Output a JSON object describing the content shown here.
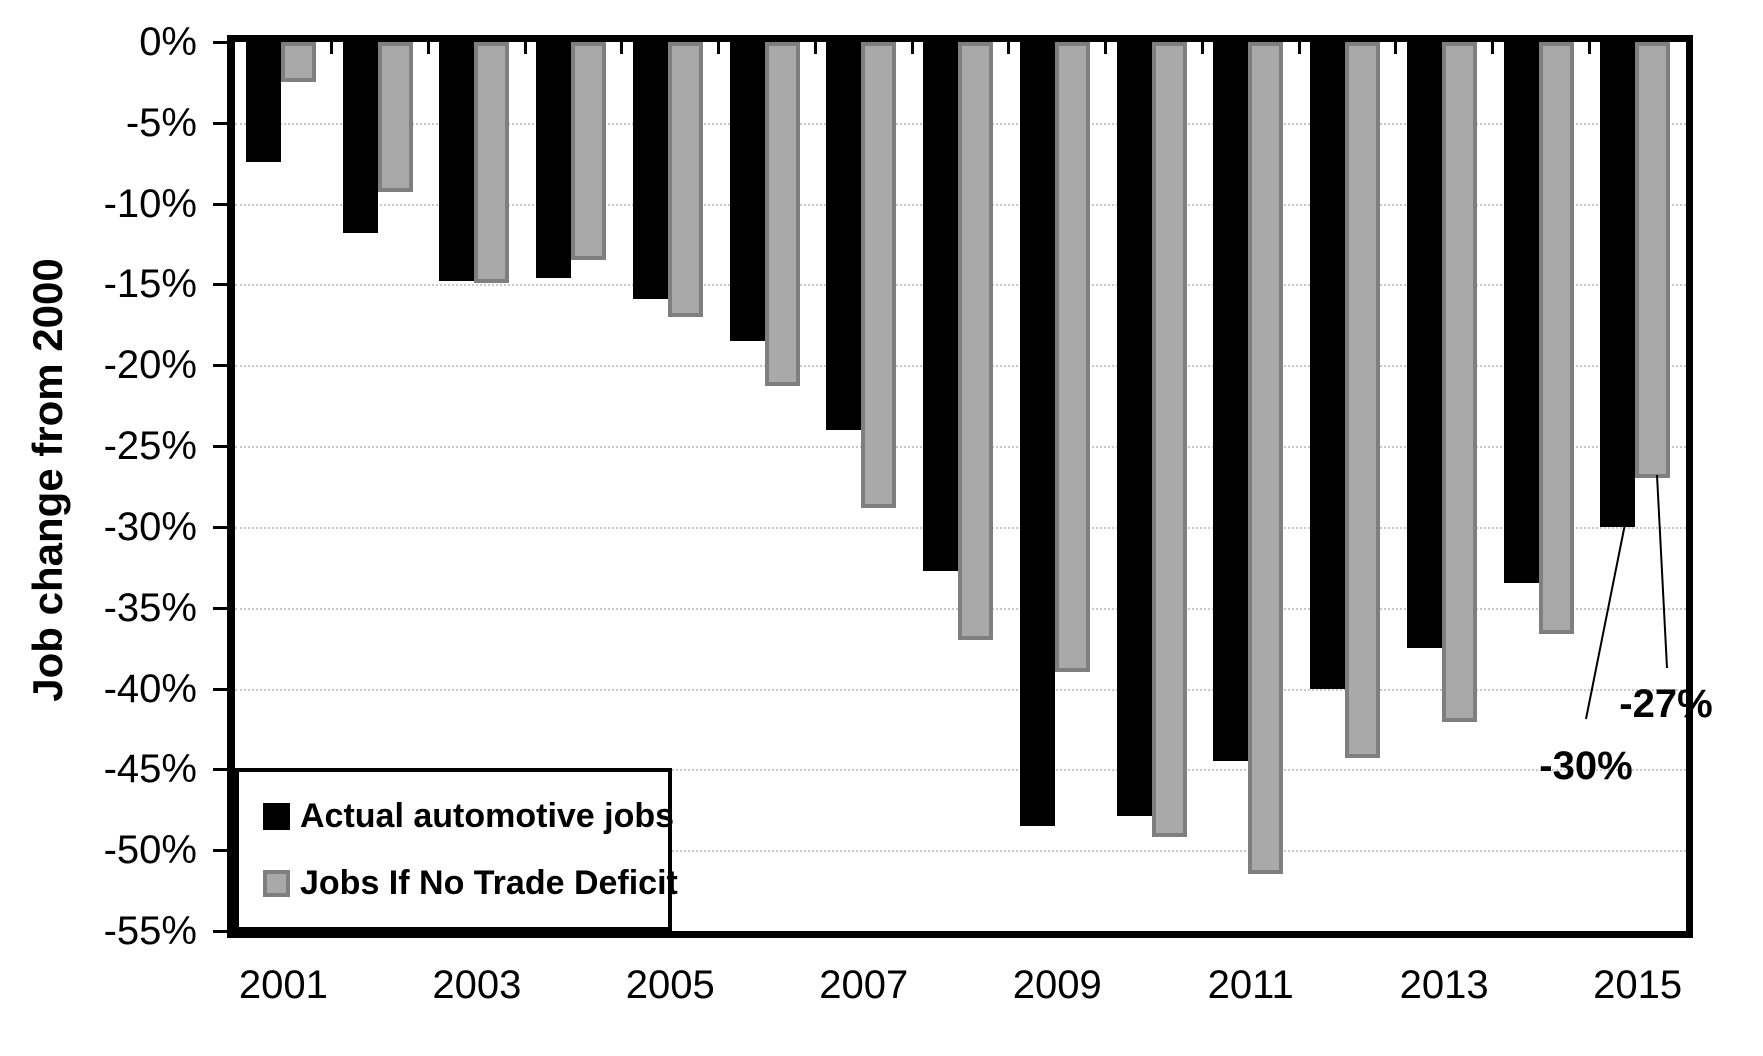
{
  "chart_data": {
    "type": "bar",
    "title": "",
    "y_axis_title": "Job change from 2000",
    "categories": [
      "2001",
      "2002",
      "2003",
      "2004",
      "2005",
      "2006",
      "2007",
      "2008",
      "2009",
      "2010",
      "2011",
      "2012",
      "2013",
      "2014",
      "2015"
    ],
    "series": [
      {
        "name": "Actual automotive jobs",
        "color": "#000000",
        "values": [
          -7.4,
          -11.8,
          -14.8,
          -14.6,
          -15.9,
          -18.5,
          -24.0,
          -32.7,
          -48.5,
          -47.9,
          -44.5,
          -40.0,
          -37.5,
          -33.5,
          -30.0
        ]
      },
      {
        "name": "Jobs If No Trade Deficit",
        "fill_color": "#a9a9a9",
        "border_color": "#7f7f7f",
        "values": [
          -2.5,
          -9.3,
          -14.9,
          -13.5,
          -17.0,
          -21.3,
          -28.8,
          -37.0,
          -39.0,
          -49.2,
          -51.5,
          -44.3,
          -42.1,
          -36.6,
          -27.0
        ]
      }
    ],
    "ylim": [
      -55,
      0
    ],
    "y_tick_step": 5,
    "y_tick_labels": [
      "0%",
      "-5%",
      "-10%",
      "-15%",
      "-20%",
      "-25%",
      "-30%",
      "-35%",
      "-40%",
      "-45%",
      "-50%",
      "-55%"
    ],
    "x_tick_labels": [
      "2001",
      "2003",
      "2005",
      "2007",
      "2009",
      "2011",
      "2013",
      "2015"
    ],
    "grid": true,
    "gridline_color": "#c9c9c9",
    "legend_position": "inside-bottom-left",
    "annotations": [
      {
        "text": "-30%",
        "series": "Actual automotive jobs",
        "category": "2015",
        "value": -30
      },
      {
        "text": "-27%",
        "series": "Jobs If No Trade Deficit",
        "category": "2015",
        "value": -27
      }
    ]
  }
}
